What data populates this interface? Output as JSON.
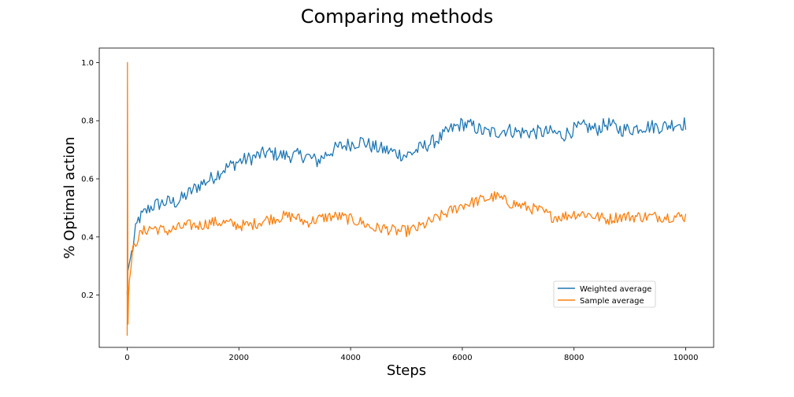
{
  "chart_data": {
    "type": "line",
    "title": "Comparing methods",
    "xlabel": "Steps",
    "ylabel": "% Optimal action",
    "xlim": [
      -500,
      10500
    ],
    "ylim": [
      0.02,
      1.05
    ],
    "xticks": [
      0,
      2000,
      4000,
      6000,
      8000,
      10000
    ],
    "yticks": [
      0.2,
      0.4,
      0.6,
      0.8,
      1.0
    ],
    "xtick_labels": [
      "0",
      "2000",
      "4000",
      "6000",
      "8000",
      "10000"
    ],
    "ytick_labels": [
      "0.2",
      "0.4",
      "0.6",
      "0.8",
      "1.0"
    ],
    "legend_position": "lower-right",
    "grid": false,
    "series": [
      {
        "name": "Weighted average",
        "color": "#1f77b4",
        "noise": 0.025,
        "x": [
          0,
          10,
          30,
          60,
          100,
          150,
          200,
          300,
          400,
          500,
          700,
          900,
          1100,
          1300,
          1500,
          1700,
          2000,
          2200,
          2500,
          2800,
          3000,
          3200,
          3400,
          3600,
          3800,
          4000,
          4200,
          4400,
          4600,
          4800,
          5000,
          5200,
          5400,
          5600,
          5800,
          6000,
          6200,
          6400,
          6600,
          6800,
          7000,
          7200,
          7400,
          7600,
          7800,
          8000,
          8200,
          8400,
          8600,
          8800,
          9000,
          9200,
          9400,
          9600,
          9800,
          10000
        ],
        "y": [
          0.2,
          0.28,
          0.3,
          0.33,
          0.36,
          0.42,
          0.46,
          0.48,
          0.5,
          0.51,
          0.52,
          0.52,
          0.55,
          0.58,
          0.6,
          0.63,
          0.66,
          0.67,
          0.69,
          0.68,
          0.68,
          0.68,
          0.66,
          0.69,
          0.71,
          0.72,
          0.73,
          0.71,
          0.7,
          0.69,
          0.68,
          0.7,
          0.72,
          0.74,
          0.77,
          0.79,
          0.78,
          0.76,
          0.76,
          0.77,
          0.76,
          0.76,
          0.76,
          0.76,
          0.75,
          0.77,
          0.78,
          0.77,
          0.79,
          0.77,
          0.77,
          0.78,
          0.78,
          0.78,
          0.79,
          0.79
        ]
      },
      {
        "name": "Sample average",
        "color": "#ff7f0e",
        "noise": 0.02,
        "x": [
          0,
          5,
          10,
          15,
          25,
          40,
          60,
          100,
          150,
          200,
          300,
          400,
          500,
          700,
          900,
          1100,
          1300,
          1500,
          1700,
          2000,
          2200,
          2500,
          2800,
          3000,
          3200,
          3400,
          3600,
          3800,
          4000,
          4200,
          4400,
          4600,
          4800,
          5000,
          5200,
          5400,
          5600,
          5800,
          6000,
          6200,
          6400,
          6600,
          6800,
          7000,
          7200,
          7400,
          7600,
          7800,
          8000,
          8200,
          8400,
          8600,
          8800,
          9000,
          9200,
          9400,
          9600,
          9800,
          10000
        ],
        "y": [
          0.06,
          1.0,
          0.5,
          0.1,
          0.2,
          0.25,
          0.28,
          0.35,
          0.38,
          0.4,
          0.42,
          0.43,
          0.43,
          0.42,
          0.43,
          0.44,
          0.44,
          0.45,
          0.45,
          0.44,
          0.44,
          0.46,
          0.47,
          0.47,
          0.45,
          0.46,
          0.47,
          0.47,
          0.46,
          0.45,
          0.43,
          0.43,
          0.42,
          0.42,
          0.43,
          0.45,
          0.47,
          0.49,
          0.51,
          0.52,
          0.53,
          0.54,
          0.52,
          0.51,
          0.5,
          0.49,
          0.47,
          0.47,
          0.48,
          0.48,
          0.47,
          0.46,
          0.47,
          0.47,
          0.47,
          0.47,
          0.47,
          0.47,
          0.47
        ]
      }
    ]
  }
}
